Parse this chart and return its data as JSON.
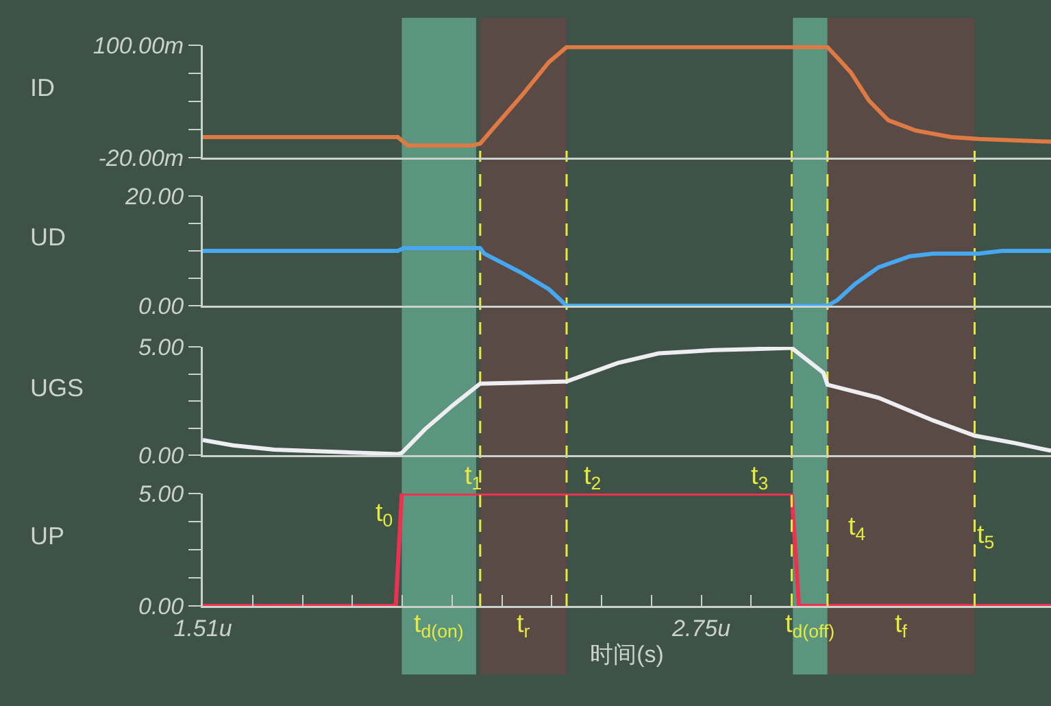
{
  "chart_data": [
    {
      "type": "line",
      "ylabel": "ID",
      "tick_labels": "y",
      "xlim": [
        1.51,
        3.62
      ],
      "ylim": [
        -20,
        100
      ],
      "yticks": [
        {
          "value": -20,
          "label": "-20.00m"
        },
        {
          "value": 10,
          "label": null
        },
        {
          "value": 40,
          "label": null
        },
        {
          "value": 70,
          "label": null
        },
        {
          "value": 100,
          "label": "100.00m"
        }
      ],
      "x": [
        1.51,
        1.995,
        2.02,
        2.18,
        2.2,
        2.234,
        2.303,
        2.371,
        2.415,
        3.064,
        3.088,
        3.122,
        3.167,
        3.215,
        3.283,
        3.372,
        3.44,
        3.62
      ],
      "series": [
        {
          "color": "#e07a45",
          "values": [
            2,
            2,
            -7,
            -7,
            -5,
            12,
            46,
            82,
            98,
            98,
            87,
            71,
            41,
            20,
            9,
            2,
            0,
            -3
          ]
        }
      ]
    },
    {
      "type": "line",
      "ylabel": "UD",
      "tick_labels": "y",
      "xlim": [
        1.51,
        3.62
      ],
      "ylim": [
        0,
        20
      ],
      "yticks": [
        {
          "value": 0,
          "label": "0.00"
        },
        {
          "value": 5,
          "label": null
        },
        {
          "value": 10,
          "label": null
        },
        {
          "value": 15,
          "label": null
        },
        {
          "value": 20,
          "label": "20.00"
        }
      ],
      "x": [
        1.51,
        1.995,
        2.01,
        2.2,
        2.21,
        2.303,
        2.371,
        2.415,
        3.064,
        3.088,
        3.133,
        3.191,
        3.269,
        3.327,
        3.44,
        3.498,
        3.62
      ],
      "series": [
        {
          "color": "#45a8f0",
          "values": [
            10,
            10,
            10.5,
            10.5,
            9.5,
            6,
            3,
            0,
            0,
            1,
            4,
            7,
            9,
            9.5,
            9.5,
            10,
            10
          ]
        }
      ]
    },
    {
      "type": "line",
      "ylabel": "UGS",
      "tick_labels": "y",
      "xlim": [
        1.51,
        3.62
      ],
      "ylim": [
        0,
        5
      ],
      "yticks": [
        {
          "value": 0,
          "label": "0.00"
        },
        {
          "value": 1.25,
          "label": null
        },
        {
          "value": 2.5,
          "label": null
        },
        {
          "value": 3.75,
          "label": null
        },
        {
          "value": 5,
          "label": "5.00"
        }
      ],
      "x": [
        1.51,
        1.585,
        1.688,
        1.841,
        1.995,
        2.005,
        2.063,
        2.132,
        2.2,
        2.415,
        2.542,
        2.644,
        2.781,
        2.883,
        2.975,
        3.054,
        3.064,
        3.191,
        3.327,
        3.43,
        3.532,
        3.62
      ],
      "series": [
        {
          "color": "#eeeef2",
          "values": [
            0.7,
            0.45,
            0.25,
            0.15,
            0.05,
            0.1,
            1.2,
            2.3,
            3.3,
            3.4,
            4.25,
            4.7,
            4.85,
            4.9,
            4.95,
            3.8,
            3.25,
            2.65,
            1.6,
            0.9,
            0.55,
            0.2
          ]
        }
      ]
    },
    {
      "type": "line",
      "ylabel": "UP",
      "xlabel": "时间(s)",
      "xlim": [
        1.51,
        3.62
      ],
      "ylim": [
        0,
        5
      ],
      "xticks": [
        {
          "value": 1.51,
          "label": "1.51u"
        },
        {
          "value": 1.634,
          "label": null
        },
        {
          "value": 1.758,
          "label": null
        },
        {
          "value": 1.882,
          "label": null
        },
        {
          "value": 2.006,
          "label": null
        },
        {
          "value": 2.13,
          "label": null
        },
        {
          "value": 2.254,
          "label": null
        },
        {
          "value": 2.378,
          "label": null
        },
        {
          "value": 2.502,
          "label": null
        },
        {
          "value": 2.626,
          "label": null
        },
        {
          "value": 2.75,
          "label": "2.75u"
        },
        {
          "value": 2.874,
          "label": null
        }
      ],
      "yticks": [
        {
          "value": 0,
          "label": "0.00"
        },
        {
          "value": 1.25,
          "label": null
        },
        {
          "value": 2.5,
          "label": null
        },
        {
          "value": 3.75,
          "label": null
        },
        {
          "value": 5,
          "label": "5.00"
        }
      ],
      "x": [
        1.51,
        1.99,
        2.005,
        2.975,
        2.993,
        3.62
      ],
      "series": [
        {
          "color": "#f0304f",
          "values": [
            0,
            0,
            5,
            5,
            0,
            0
          ]
        }
      ],
      "annotations": [
        "t$_{0}$"
      ],
      "bands": [
        {
          "axis": "x",
          "from": 2.005,
          "to": 2.19,
          "label": "t$_{d(on)}$",
          "color": "#5b9580"
        },
        {
          "axis": "x",
          "from": 2.2,
          "to": 2.415,
          "label": "t$_{r}$",
          "color": "#5a4a45"
        },
        {
          "axis": "x",
          "from": 2.978,
          "to": 3.064,
          "label": "t$_{d(off)}$",
          "color": "#5b9580"
        },
        {
          "axis": "x",
          "from": 3.064,
          "to": 3.43,
          "label": "t$_{f}$",
          "color": "#5a4a45"
        }
      ],
      "ref_lines": [
        {
          "axis": "x",
          "value": 2.2,
          "label": "t$_{1}$",
          "color": "#e6ea40",
          "line_style": "dashed"
        },
        {
          "axis": "x",
          "value": 2.415,
          "label": "t$_{2}$",
          "color": "#e6ea40",
          "line_style": "dashed"
        },
        {
          "axis": "x",
          "value": 2.975,
          "label": "t$_{3}$",
          "color": "#e6ea40",
          "line_style": "dashed"
        },
        {
          "axis": "x",
          "value": 3.064,
          "label": "t$_{4}$",
          "color": "#e6ea40",
          "line_style": "dashed"
        },
        {
          "axis": "x",
          "value": 3.43,
          "label": "t$_{5}$",
          "color": "#e6ea40",
          "line_style": "dashed"
        }
      ]
    }
  ]
}
